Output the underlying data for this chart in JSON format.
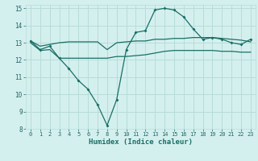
{
  "title": "",
  "xlabel": "Humidex (Indice chaleur)",
  "ylabel": "",
  "background_color": "#d4f0ee",
  "grid_color": "#b8dcd8",
  "line_color": "#1a6e66",
  "xlim": [
    -0.5,
    23.5
  ],
  "ylim": [
    8,
    15.2
  ],
  "yticks": [
    8,
    9,
    10,
    11,
    12,
    13,
    14,
    15
  ],
  "xticks": [
    0,
    1,
    2,
    3,
    4,
    5,
    6,
    7,
    8,
    9,
    10,
    11,
    12,
    13,
    14,
    15,
    16,
    17,
    18,
    19,
    20,
    21,
    22,
    23
  ],
  "xtick_labels": [
    "0",
    "1",
    "2",
    "3",
    "4",
    "5",
    "6",
    "7",
    "8",
    "9",
    "10",
    "11",
    "12",
    "13",
    "14",
    "15",
    "16",
    "17",
    "18",
    "19",
    "20",
    "21",
    "22",
    "23"
  ],
  "line1_x": [
    0,
    1,
    2,
    3,
    4,
    5,
    6,
    7,
    8,
    9,
    10,
    11,
    12,
    13,
    14,
    15,
    16,
    17,
    18,
    19,
    20,
    21,
    22,
    23
  ],
  "line1_y": [
    13.1,
    12.6,
    12.8,
    12.1,
    11.5,
    10.8,
    10.3,
    9.4,
    8.2,
    9.7,
    12.6,
    13.6,
    13.7,
    14.9,
    15.0,
    14.9,
    14.5,
    13.8,
    13.2,
    13.3,
    13.2,
    13.0,
    12.9,
    13.2
  ],
  "line2_x": [
    0,
    1,
    2,
    3,
    4,
    5,
    6,
    7,
    8,
    9,
    10,
    11,
    12,
    13,
    14,
    15,
    16,
    17,
    18,
    19,
    20,
    21,
    22,
    23
  ],
  "line2_y": [
    13.1,
    12.8,
    12.9,
    13.0,
    13.05,
    13.05,
    13.05,
    13.05,
    12.6,
    13.0,
    13.05,
    13.1,
    13.1,
    13.2,
    13.2,
    13.25,
    13.25,
    13.3,
    13.3,
    13.3,
    13.25,
    13.2,
    13.15,
    13.05
  ],
  "line3_x": [
    0,
    1,
    2,
    3,
    4,
    5,
    6,
    7,
    8,
    9,
    10,
    11,
    12,
    13,
    14,
    15,
    16,
    17,
    18,
    19,
    20,
    21,
    22,
    23
  ],
  "line3_y": [
    13.0,
    12.55,
    12.6,
    12.1,
    12.1,
    12.1,
    12.1,
    12.1,
    12.1,
    12.2,
    12.2,
    12.25,
    12.3,
    12.4,
    12.5,
    12.55,
    12.55,
    12.55,
    12.55,
    12.55,
    12.5,
    12.5,
    12.45,
    12.45
  ]
}
